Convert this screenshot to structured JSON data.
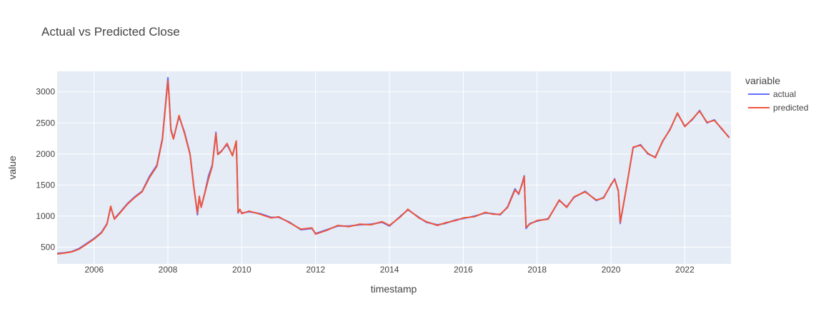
{
  "chart_data": {
    "type": "line",
    "title": "Actual vs Predicted Close",
    "xlabel": "timestamp",
    "ylabel": "value",
    "xlim": [
      2005.0,
      2023.25
    ],
    "ylim": [
      230,
      3330
    ],
    "x_ticks": [
      2006,
      2008,
      2010,
      2012,
      2014,
      2016,
      2018,
      2020,
      2022
    ],
    "y_ticks": [
      500,
      1000,
      1500,
      2000,
      2500,
      3000
    ],
    "grid": true,
    "legend": {
      "title": "variable",
      "position": "right"
    },
    "colors": {
      "plot_bg": "#E5ECF6",
      "grid": "#ffffff",
      "actual": "#636EFA",
      "predicted": "#EF553B"
    },
    "series": [
      {
        "name": "actual",
        "x": [
          2005.0,
          2005.2,
          2005.4,
          2005.6,
          2005.8,
          2006.0,
          2006.2,
          2006.35,
          2006.45,
          2006.55,
          2006.7,
          2006.9,
          2007.1,
          2007.3,
          2007.5,
          2007.7,
          2007.85,
          2007.95,
          2008.0,
          2008.03,
          2008.08,
          2008.15,
          2008.3,
          2008.45,
          2008.6,
          2008.7,
          2008.8,
          2008.85,
          2008.9,
          2009.0,
          2009.1,
          2009.2,
          2009.3,
          2009.35,
          2009.45,
          2009.6,
          2009.75,
          2009.85,
          2009.87,
          2009.9,
          2009.95,
          2010.0,
          2010.2,
          2010.5,
          2010.8,
          2011.0,
          2011.3,
          2011.6,
          2011.9,
          2012.0,
          2012.3,
          2012.6,
          2012.9,
          2013.2,
          2013.5,
          2013.8,
          2014.0,
          2014.3,
          2014.5,
          2014.8,
          2015.0,
          2015.3,
          2015.5,
          2015.8,
          2016.0,
          2016.3,
          2016.6,
          2016.8,
          2017.0,
          2017.2,
          2017.4,
          2017.5,
          2017.6,
          2017.65,
          2017.7,
          2017.8,
          2018.0,
          2018.3,
          2018.6,
          2018.8,
          2019.0,
          2019.3,
          2019.6,
          2019.8,
          2020.0,
          2020.1,
          2020.2,
          2020.25,
          2020.4,
          2020.6,
          2020.8,
          2021.0,
          2021.2,
          2021.4,
          2021.6,
          2021.8,
          2022.0,
          2022.2,
          2022.4,
          2022.6,
          2022.8,
          2023.0,
          2023.2
        ],
        "values": [
          400,
          410,
          430,
          480,
          560,
          640,
          740,
          880,
          1140,
          960,
          1060,
          1200,
          1310,
          1400,
          1640,
          1820,
          2250,
          2900,
          3230,
          2950,
          2400,
          2250,
          2600,
          2350,
          2000,
          1480,
          1020,
          1300,
          1150,
          1380,
          1650,
          1820,
          2350,
          2000,
          2050,
          2150,
          1980,
          2200,
          1800,
          1050,
          1100,
          1050,
          1070,
          1040,
          980,
          980,
          900,
          780,
          800,
          720,
          780,
          840,
          840,
          860,
          870,
          900,
          840,
          1000,
          1100,
          980,
          900,
          860,
          880,
          940,
          960,
          1000,
          1050,
          1040,
          1020,
          1150,
          1440,
          1350,
          1540,
          1650,
          800,
          880,
          920,
          960,
          1250,
          1150,
          1300,
          1400,
          1250,
          1300,
          1500,
          1600,
          1400,
          880,
          1400,
          2100,
          2150,
          2000,
          1950,
          2200,
          2400,
          2650,
          2450,
          2550,
          2700,
          2500,
          2550,
          2400,
          2270
        ]
      },
      {
        "name": "predicted",
        "x": [
          2005.0,
          2005.2,
          2005.4,
          2005.6,
          2005.8,
          2006.0,
          2006.2,
          2006.35,
          2006.45,
          2006.55,
          2006.7,
          2006.9,
          2007.1,
          2007.3,
          2007.5,
          2007.7,
          2007.85,
          2007.95,
          2008.0,
          2008.03,
          2008.08,
          2008.15,
          2008.3,
          2008.45,
          2008.6,
          2008.7,
          2008.8,
          2008.85,
          2008.9,
          2009.0,
          2009.1,
          2009.2,
          2009.3,
          2009.35,
          2009.45,
          2009.6,
          2009.75,
          2009.85,
          2009.87,
          2009.9,
          2009.95,
          2010.0,
          2010.2,
          2010.5,
          2010.8,
          2011.0,
          2011.3,
          2011.6,
          2011.9,
          2012.0,
          2012.3,
          2012.6,
          2012.9,
          2013.2,
          2013.5,
          2013.8,
          2014.0,
          2014.3,
          2014.5,
          2014.8,
          2015.0,
          2015.3,
          2015.5,
          2015.8,
          2016.0,
          2016.3,
          2016.6,
          2016.8,
          2017.0,
          2017.2,
          2017.4,
          2017.5,
          2017.6,
          2017.65,
          2017.7,
          2017.8,
          2018.0,
          2018.3,
          2018.6,
          2018.8,
          2019.0,
          2019.3,
          2019.6,
          2019.8,
          2020.0,
          2020.1,
          2020.2,
          2020.25,
          2020.4,
          2020.6,
          2020.8,
          2021.0,
          2021.2,
          2021.4,
          2021.6,
          2021.8,
          2022.0,
          2022.2,
          2022.4,
          2022.6,
          2022.8,
          2023.0,
          2023.2
        ],
        "values": [
          390,
          405,
          425,
          470,
          550,
          630,
          730,
          870,
          1160,
          950,
          1050,
          1190,
          1300,
          1390,
          1620,
          1800,
          2230,
          2870,
          3180,
          2920,
          2380,
          2240,
          2620,
          2330,
          1990,
          1470,
          1050,
          1320,
          1140,
          1370,
          1600,
          1800,
          2330,
          1990,
          2040,
          2170,
          1970,
          2210,
          1850,
          1060,
          1110,
          1040,
          1080,
          1030,
          970,
          990,
          890,
          790,
          810,
          710,
          770,
          850,
          830,
          870,
          860,
          910,
          850,
          990,
          1110,
          970,
          910,
          850,
          890,
          930,
          970,
          990,
          1060,
          1030,
          1030,
          1140,
          1420,
          1360,
          1520,
          1640,
          820,
          870,
          930,
          950,
          1260,
          1140,
          1310,
          1390,
          1260,
          1290,
          1510,
          1590,
          1410,
          900,
          1390,
          2110,
          2140,
          2010,
          1940,
          2210,
          2390,
          2660,
          2440,
          2560,
          2690,
          2510,
          2540,
          2410,
          2260
        ]
      }
    ]
  }
}
